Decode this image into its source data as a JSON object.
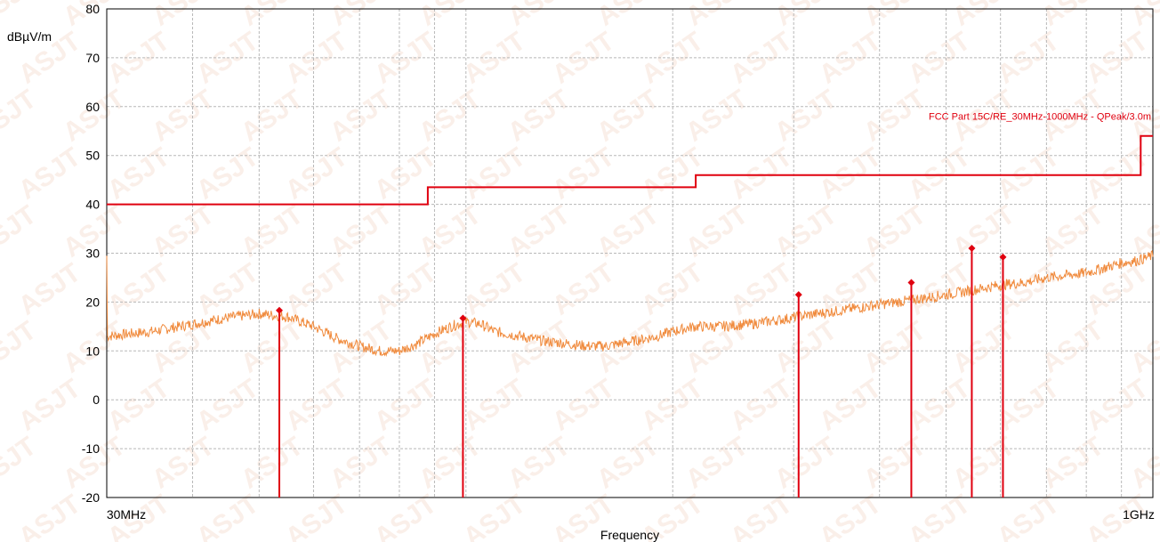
{
  "chart_data": {
    "type": "line",
    "title": "",
    "xlabel": "Frequency",
    "ylabel": "dBµV/m",
    "x_scale": "log",
    "xlim_mhz": [
      30,
      1000
    ],
    "ylim": [
      -20,
      80
    ],
    "grid": true,
    "x_tick_labels": [
      "30MHz",
      "1GHz"
    ],
    "y_ticks": [
      80,
      70,
      60,
      50,
      40,
      30,
      20,
      10,
      0,
      -10,
      -20
    ],
    "limit_line": {
      "name": "FCC Part 15C/RE_30MHz-1000MHz - QPeak/3.0m",
      "color": "#e0000f",
      "steps": [
        {
          "from_mhz": 30,
          "to_mhz": 88,
          "level": 40.0
        },
        {
          "from_mhz": 88,
          "to_mhz": 216,
          "level": 43.5
        },
        {
          "from_mhz": 216,
          "to_mhz": 960,
          "level": 46.0
        },
        {
          "from_mhz": 960,
          "to_mhz": 1000,
          "level": 54.0
        }
      ]
    },
    "trace": {
      "color": "#f08a3c",
      "points": [
        [
          30,
          13.0
        ],
        [
          35,
          14.0
        ],
        [
          40,
          15.5
        ],
        [
          45,
          16.8
        ],
        [
          50,
          17.6
        ],
        [
          55,
          17.0
        ],
        [
          60,
          15.0
        ],
        [
          65,
          12.5
        ],
        [
          70,
          11.0
        ],
        [
          75,
          10.0
        ],
        [
          80,
          10.0
        ],
        [
          85,
          11.5
        ],
        [
          90,
          13.5
        ],
        [
          95,
          15.0
        ],
        [
          100,
          16.0
        ],
        [
          105,
          15.5
        ],
        [
          110,
          14.0
        ],
        [
          120,
          13.0
        ],
        [
          130,
          12.0
        ],
        [
          140,
          11.5
        ],
        [
          150,
          11.0
        ],
        [
          160,
          11.0
        ],
        [
          175,
          12.0
        ],
        [
          190,
          13.0
        ],
        [
          200,
          14.0
        ],
        [
          215,
          15.0
        ],
        [
          235,
          15.0
        ],
        [
          260,
          15.5
        ],
        [
          290,
          16.5
        ],
        [
          320,
          17.5
        ],
        [
          360,
          18.5
        ],
        [
          400,
          19.5
        ],
        [
          450,
          20.5
        ],
        [
          500,
          21.5
        ],
        [
          550,
          22.5
        ],
        [
          600,
          23.5
        ],
        [
          650,
          24.0
        ],
        [
          700,
          25.0
        ],
        [
          750,
          25.5
        ],
        [
          800,
          26.0
        ],
        [
          850,
          27.0
        ],
        [
          900,
          28.0
        ],
        [
          950,
          28.5
        ],
        [
          1000,
          29.5
        ]
      ]
    },
    "peak_markers": {
      "color": "#e0000f",
      "points": [
        [
          53.5,
          18.3
        ],
        [
          99.0,
          16.7
        ],
        [
          305.0,
          21.5
        ],
        [
          445.0,
          24.0
        ],
        [
          545.0,
          31.0
        ],
        [
          605.0,
          29.2
        ]
      ]
    },
    "watermark": "ASJT"
  }
}
